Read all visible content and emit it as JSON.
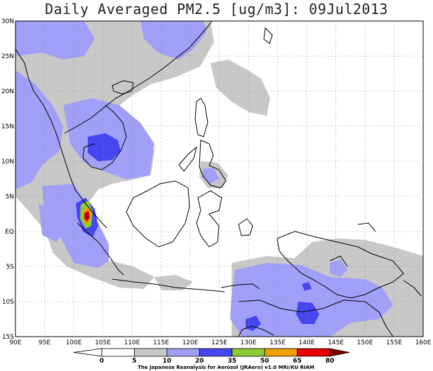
{
  "title": "Daily Averaged PM2.5 [ug/m3]: 09Jul2013",
  "map": {
    "lon_range": [
      90,
      160
    ],
    "lat_range": [
      -15,
      30
    ],
    "lon_ticks": [
      "90E",
      "95E",
      "100E",
      "105E",
      "110E",
      "115E",
      "120E",
      "125E",
      "130E",
      "135E",
      "140E",
      "145E",
      "150E",
      "155E",
      "160E"
    ],
    "lat_ticks": [
      "30N",
      "25N",
      "20N",
      "15N",
      "10N",
      "5N",
      "EQ",
      "5S",
      "10S",
      "15S"
    ],
    "grid": "dotted"
  },
  "colorbar": {
    "levels": [
      "0",
      "5",
      "10",
      "20",
      "35",
      "50",
      "65",
      "80"
    ],
    "colors": [
      "#ffffff",
      "#ffffff",
      "#c8c8c8",
      "#a0a0f8",
      "#4646f0",
      "#8ccc32",
      "#f0a000",
      "#e60000",
      "#7a0000"
    ]
  },
  "credit": "The Japanese Reanalysis for Aerosol (JRAero) v1.0 MRI/KU RIAM"
}
